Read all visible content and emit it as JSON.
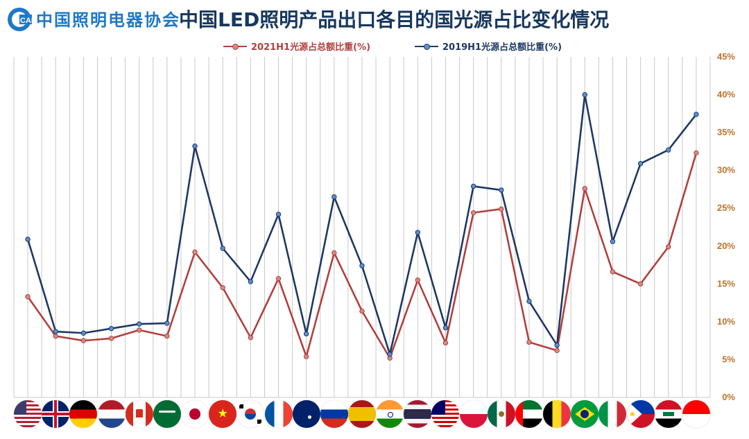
{
  "header": {
    "logo_text": "CALI",
    "org_name": "中国照明电器协会",
    "title": "中国LED照明产品出口各目的国光源占比变化情况"
  },
  "colors": {
    "series_2021": "#b0413e",
    "series_2019": "#1f3864",
    "axis_label": "#c0722a",
    "grid": "#c8c8c8",
    "title": "#17375e",
    "logo": "#1f78c8"
  },
  "chart_data": {
    "type": "line",
    "title": "中国LED照明产品出口各目的国光源占比变化情况",
    "x": [
      "United States",
      "United Kingdom",
      "Germany",
      "Netherlands",
      "Canada",
      "Saudi Arabia",
      "Japan",
      "Vietnam",
      "South Korea",
      "France",
      "Australia",
      "Russia",
      "Spain",
      "India",
      "Thailand",
      "Malaysia",
      "Poland",
      "Mexico",
      "UAE",
      "Belgium",
      "Brazil",
      "Italy",
      "Philippines",
      "Iraq",
      "Indonesia"
    ],
    "yaxis_position": "right",
    "ylim": [
      0,
      45
    ],
    "yticks": [
      0,
      5,
      10,
      15,
      20,
      25,
      30,
      35,
      40,
      45
    ],
    "ytick_labels": [
      "0%",
      "5%",
      "10%",
      "15%",
      "20%",
      "25%",
      "30%",
      "35%",
      "40%",
      "45%"
    ],
    "grid": true,
    "legend_position": "top",
    "series": [
      {
        "name": "2021H1光源占总额比重(%)",
        "color": "#b0413e",
        "values": [
          13.3,
          8.1,
          7.5,
          7.8,
          8.9,
          8.1,
          19.2,
          14.5,
          7.9,
          15.7,
          5.4,
          19.1,
          11.4,
          5.2,
          15.5,
          7.2,
          24.4,
          24.9,
          7.3,
          6.2,
          27.6,
          16.6,
          15.0,
          19.9,
          32.3
        ]
      },
      {
        "name": "2019H1光源占总额比重(%)",
        "color": "#1f3864",
        "values": [
          20.9,
          8.7,
          8.5,
          9.1,
          9.7,
          9.8,
          33.2,
          19.7,
          15.3,
          24.2,
          8.4,
          26.5,
          17.4,
          5.7,
          21.8,
          9.2,
          27.9,
          27.4,
          12.7,
          6.9,
          40.0,
          20.6,
          30.9,
          32.7,
          37.4
        ]
      }
    ]
  },
  "flags": [
    "us",
    "gb",
    "de",
    "nl",
    "ca",
    "sa",
    "jp",
    "vn",
    "kr",
    "fr",
    "au",
    "ru",
    "es",
    "in",
    "th",
    "my",
    "pl",
    "mx",
    "ae",
    "be",
    "br",
    "it",
    "ph",
    "iq",
    "id"
  ]
}
